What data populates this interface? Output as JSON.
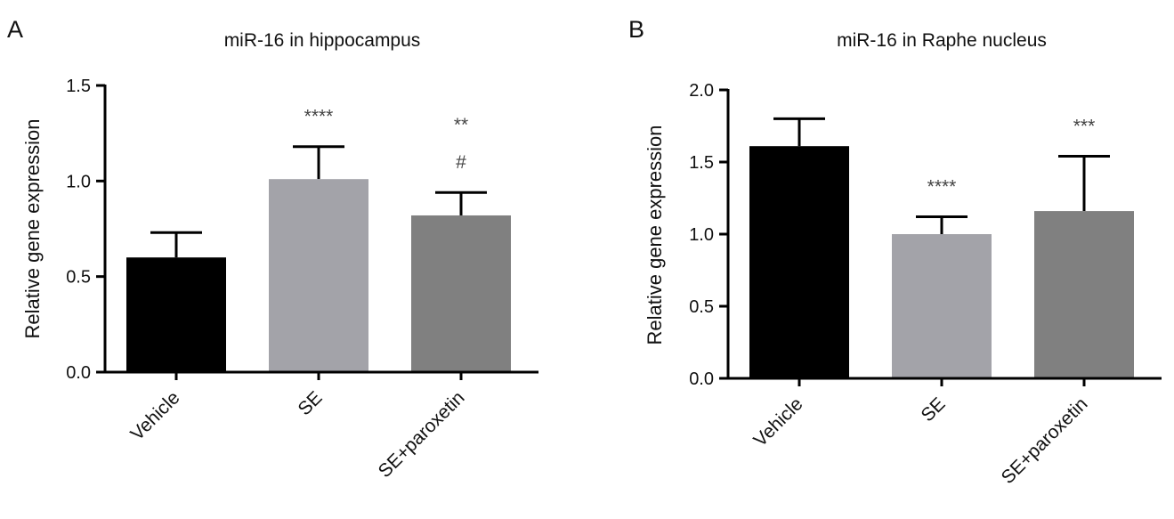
{
  "chart_data": [
    {
      "type": "bar",
      "panel_label": "A",
      "title": "miR-16 in hippocampus",
      "xlabel": "",
      "ylabel": "Relative gene expression",
      "ylim": [
        0,
        1.5
      ],
      "yticks": [
        "0.0",
        "0.5",
        "1.0",
        "1.5"
      ],
      "grid": false,
      "legend": "none",
      "categories": [
        "Vehicle",
        "SE",
        "SE+paroxetin"
      ],
      "values": [
        0.6,
        1.01,
        0.82
      ],
      "errors": [
        0.13,
        0.17,
        0.12
      ],
      "colors": [
        "#000000",
        "#a3a3a9",
        "#808080"
      ],
      "annotations": [
        [],
        [
          "****"
        ],
        [
          "**",
          "#"
        ]
      ]
    },
    {
      "type": "bar",
      "panel_label": "B",
      "title": "miR-16 in Raphe nucleus",
      "xlabel": "",
      "ylabel": "Relative gene expression",
      "ylim": [
        0,
        2.0
      ],
      "yticks": [
        "0.0",
        "0.5",
        "1.0",
        "1.5",
        "2.0"
      ],
      "grid": false,
      "legend": "none",
      "categories": [
        "Vehicle",
        "SE",
        "SE+paroxetin"
      ],
      "values": [
        1.61,
        1.0,
        1.16
      ],
      "errors": [
        0.19,
        0.12,
        0.38
      ],
      "colors": [
        "#000000",
        "#a3a3a9",
        "#808080"
      ],
      "annotations": [
        [],
        [
          "****"
        ],
        [
          "***"
        ]
      ]
    }
  ]
}
